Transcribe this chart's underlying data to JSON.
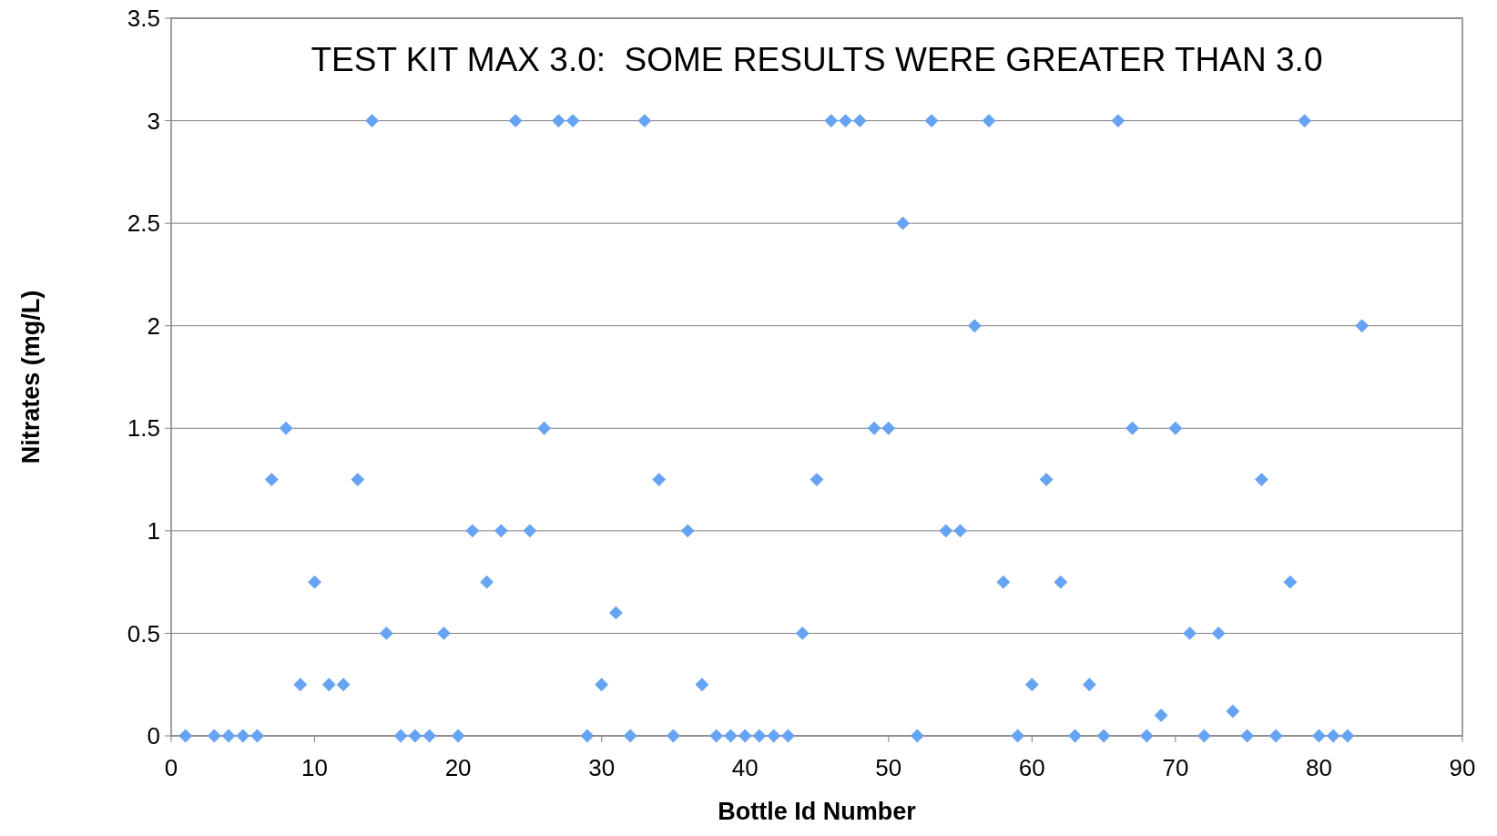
{
  "chart_data": {
    "type": "scatter",
    "xlabel": "Bottle Id Number",
    "ylabel": "Nitrates (mg/L)",
    "annotations": [
      "TEST KIT MAX 3.0:  SOME RESULTS WERE GREATER THAN 3.0"
    ],
    "x": [
      1,
      3,
      4,
      5,
      6,
      7,
      8,
      9,
      10,
      11,
      12,
      13,
      14,
      15,
      16,
      17,
      18,
      19,
      20,
      21,
      22,
      23,
      24,
      25,
      26,
      27,
      28,
      29,
      30,
      31,
      32,
      33,
      34,
      35,
      36,
      37,
      38,
      39,
      40,
      41,
      42,
      43,
      44,
      45,
      46,
      47,
      48,
      49,
      50,
      51,
      52,
      53,
      54,
      55,
      56,
      57,
      58,
      59,
      60,
      61,
      62,
      63,
      64,
      65,
      66,
      67,
      68,
      69,
      70,
      71,
      72,
      73,
      74,
      75,
      76,
      77,
      78,
      79,
      80,
      81,
      82,
      83
    ],
    "series": [
      {
        "color": "#66a3f2",
        "values": [
          0,
          0,
          0,
          0,
          0,
          1.25,
          1.5,
          0.25,
          0.75,
          0.25,
          0.25,
          1.25,
          3,
          0.5,
          0,
          0,
          0,
          0.5,
          0,
          1,
          0.75,
          1,
          3,
          1,
          1.5,
          3,
          3,
          0,
          0.25,
          0.6,
          0,
          3,
          1.25,
          0,
          1,
          0.25,
          0,
          0,
          0,
          0,
          0,
          0,
          0.5,
          1.25,
          3,
          3,
          3,
          1.5,
          1.5,
          2.5,
          0,
          3,
          1,
          1,
          2,
          3,
          0.75,
          0,
          0.25,
          1.25,
          0.75,
          0,
          0.25,
          0,
          3,
          1.5,
          0,
          0.1,
          1.5,
          0.5,
          0,
          0.5,
          0.12,
          0,
          1.25,
          0,
          0.75,
          3,
          0,
          0,
          0,
          2
        ]
      }
    ],
    "xlim": [
      0,
      90
    ],
    "xticks": [
      0,
      10,
      20,
      30,
      40,
      50,
      60,
      70,
      80,
      90
    ],
    "ylim": [
      0,
      3.5
    ],
    "yticks": [
      0,
      0.5,
      1,
      1.5,
      2,
      2.5,
      3,
      3.5
    ],
    "grid": "y",
    "marker": "diamond"
  }
}
